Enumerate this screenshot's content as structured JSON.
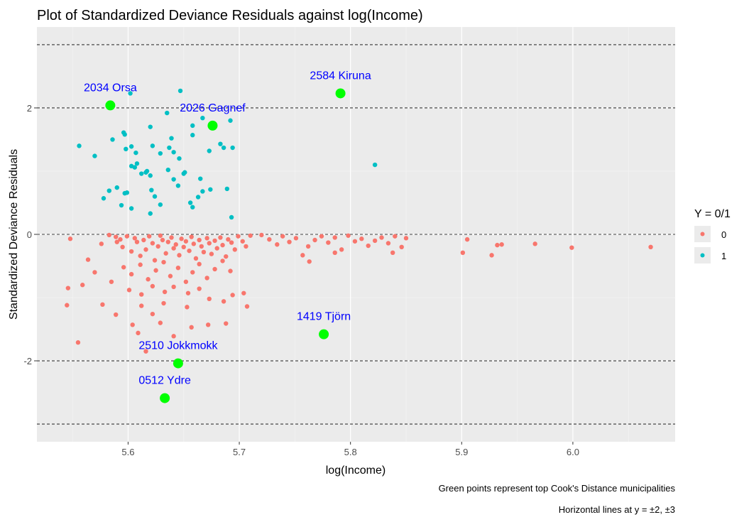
{
  "chart_data": {
    "type": "scatter",
    "title": "Plot of Standardized Deviance Residuals against log(Income)",
    "xlabel": "log(Income)",
    "ylabel": "Standardized Deviance Residuals",
    "xlim": [
      5.518,
      6.092
    ],
    "ylim": [
      -3.28,
      3.28
    ],
    "x_ticks": [
      5.6,
      5.7,
      5.8,
      5.9,
      6.0
    ],
    "x_tick_labels": [
      "5.6",
      "5.7",
      "5.8",
      "5.9",
      "6.0"
    ],
    "y_ticks": [
      -2,
      0,
      2
    ],
    "y_tick_labels": [
      "-2",
      "0",
      "2"
    ],
    "grid": true,
    "reference_lines": [
      -3,
      -2,
      0,
      2,
      3
    ],
    "legend": {
      "title": "Y = 0/1",
      "position": "right",
      "entries": [
        {
          "label": "0",
          "color": "#F8766D"
        },
        {
          "label": "1",
          "color": "#00BFC4"
        }
      ]
    },
    "captions": [
      "Green points represent top Cook's Distance municipalities",
      "Horizontal lines at y = ±2, ±3"
    ],
    "highlight_color": "#00FF00",
    "label_color": "#0000FF",
    "highlighted": [
      {
        "label": "2034 Orsa",
        "x": 5.584,
        "y": 2.04
      },
      {
        "label": "2584 Kiruna",
        "x": 5.791,
        "y": 2.23
      },
      {
        "label": "2026 Gagnef",
        "x": 5.676,
        "y": 1.72
      },
      {
        "label": "1419 Tjörn",
        "x": 5.776,
        "y": -1.58
      },
      {
        "label": "2510 Jokkmokk",
        "x": 5.645,
        "y": -2.04
      },
      {
        "label": "0512 Ydre",
        "x": 5.633,
        "y": -2.59
      }
    ],
    "series": [
      {
        "name": "1",
        "color": "#00BFC4",
        "points": [
          [
            5.602,
            2.23
          ],
          [
            5.647,
            2.27
          ],
          [
            5.635,
            1.92
          ],
          [
            5.667,
            1.84
          ],
          [
            5.658,
            1.72
          ],
          [
            5.676,
            1.73
          ],
          [
            5.692,
            1.8
          ],
          [
            5.62,
            1.7
          ],
          [
            5.596,
            1.61
          ],
          [
            5.597,
            1.58
          ],
          [
            5.586,
            1.5
          ],
          [
            5.622,
            1.4
          ],
          [
            5.639,
            1.52
          ],
          [
            5.658,
            1.57
          ],
          [
            5.683,
            1.43
          ],
          [
            5.556,
            1.4
          ],
          [
            5.598,
            1.35
          ],
          [
            5.603,
            1.39
          ],
          [
            5.607,
            1.29
          ],
          [
            5.629,
            1.28
          ],
          [
            5.637,
            1.37
          ],
          [
            5.641,
            1.3
          ],
          [
            5.673,
            1.32
          ],
          [
            5.686,
            1.37
          ],
          [
            5.694,
            1.37
          ],
          [
            5.57,
            1.24
          ],
          [
            5.603,
            1.08
          ],
          [
            5.606,
            1.06
          ],
          [
            5.608,
            1.12
          ],
          [
            5.612,
            0.96
          ],
          [
            5.616,
            0.98
          ],
          [
            5.62,
            0.93
          ],
          [
            5.636,
            1.02
          ],
          [
            5.646,
            1.2
          ],
          [
            5.65,
            0.96
          ],
          [
            5.665,
            0.88
          ],
          [
            5.617,
            1.0
          ],
          [
            5.641,
            0.87
          ],
          [
            5.645,
            0.77
          ],
          [
            5.651,
            0.98
          ],
          [
            5.822,
            1.1
          ],
          [
            5.583,
            0.69
          ],
          [
            5.59,
            0.74
          ],
          [
            5.597,
            0.65
          ],
          [
            5.599,
            0.66
          ],
          [
            5.621,
            0.7
          ],
          [
            5.624,
            0.6
          ],
          [
            5.629,
            0.47
          ],
          [
            5.656,
            0.5
          ],
          [
            5.663,
            0.59
          ],
          [
            5.667,
            0.68
          ],
          [
            5.674,
            0.71
          ],
          [
            5.689,
            0.72
          ],
          [
            5.578,
            0.57
          ],
          [
            5.594,
            0.46
          ],
          [
            5.603,
            0.41
          ],
          [
            5.62,
            0.33
          ],
          [
            5.658,
            0.43
          ],
          [
            5.693,
            0.27
          ]
        ]
      },
      {
        "name": "0",
        "color": "#F8766D",
        "points": [
          [
            5.548,
            -0.07
          ],
          [
            5.564,
            -0.4
          ],
          [
            5.576,
            -0.15
          ],
          [
            5.583,
            -0.01
          ],
          [
            5.589,
            -0.04
          ],
          [
            5.59,
            -0.12
          ],
          [
            5.593,
            -0.08
          ],
          [
            5.595,
            -0.2
          ],
          [
            5.599,
            -0.03
          ],
          [
            5.603,
            -0.27
          ],
          [
            5.606,
            -0.06
          ],
          [
            5.608,
            -0.12
          ],
          [
            5.611,
            -0.34
          ],
          [
            5.614,
            -0.09
          ],
          [
            5.616,
            -0.24
          ],
          [
            5.619,
            -0.03
          ],
          [
            5.622,
            -0.14
          ],
          [
            5.624,
            -0.41
          ],
          [
            5.627,
            -0.19
          ],
          [
            5.629,
            -0.02
          ],
          [
            5.631,
            -0.09
          ],
          [
            5.634,
            -0.3
          ],
          [
            5.636,
            -0.12
          ],
          [
            5.639,
            -0.05
          ],
          [
            5.641,
            -0.22
          ],
          [
            5.643,
            -0.16
          ],
          [
            5.646,
            -0.33
          ],
          [
            5.648,
            -0.07
          ],
          [
            5.65,
            -0.2
          ],
          [
            5.652,
            -0.11
          ],
          [
            5.655,
            -0.26
          ],
          [
            5.657,
            -0.04
          ],
          [
            5.659,
            -0.15
          ],
          [
            5.661,
            -0.38
          ],
          [
            5.664,
            -0.09
          ],
          [
            5.666,
            -0.19
          ],
          [
            5.668,
            -0.28
          ],
          [
            5.671,
            -0.06
          ],
          [
            5.673,
            -0.14
          ],
          [
            5.675,
            -0.31
          ],
          [
            5.678,
            -0.1
          ],
          [
            5.68,
            -0.22
          ],
          [
            5.683,
            -0.05
          ],
          [
            5.685,
            -0.17
          ],
          [
            5.688,
            -0.35
          ],
          [
            5.69,
            -0.08
          ],
          [
            5.693,
            -0.13
          ],
          [
            5.696,
            -0.24
          ],
          [
            5.699,
            -0.03
          ],
          [
            5.703,
            -0.11
          ],
          [
            5.706,
            -0.19
          ],
          [
            5.71,
            -0.02
          ],
          [
            5.596,
            -0.52
          ],
          [
            5.603,
            -0.63
          ],
          [
            5.611,
            -0.48
          ],
          [
            5.618,
            -0.71
          ],
          [
            5.625,
            -0.57
          ],
          [
            5.632,
            -0.44
          ],
          [
            5.638,
            -0.66
          ],
          [
            5.645,
            -0.53
          ],
          [
            5.652,
            -0.75
          ],
          [
            5.658,
            -0.6
          ],
          [
            5.664,
            -0.47
          ],
          [
            5.671,
            -0.69
          ],
          [
            5.678,
            -0.55
          ],
          [
            5.685,
            -0.42
          ],
          [
            5.692,
            -0.58
          ],
          [
            5.601,
            -0.88
          ],
          [
            5.612,
            -0.95
          ],
          [
            5.622,
            -0.82
          ],
          [
            5.633,
            -0.91
          ],
          [
            5.641,
            -0.83
          ],
          [
            5.654,
            -0.93
          ],
          [
            5.664,
            -0.86
          ],
          [
            5.694,
            -0.96
          ],
          [
            5.704,
            -0.93
          ],
          [
            5.546,
            -0.85
          ],
          [
            5.559,
            -0.8
          ],
          [
            5.57,
            -0.6
          ],
          [
            5.585,
            -0.75
          ],
          [
            5.545,
            -1.12
          ],
          [
            5.577,
            -1.11
          ],
          [
            5.589,
            -1.27
          ],
          [
            5.612,
            -1.13
          ],
          [
            5.622,
            -1.26
          ],
          [
            5.632,
            -1.09
          ],
          [
            5.653,
            -1.15
          ],
          [
            5.673,
            -1.02
          ],
          [
            5.686,
            -1.06
          ],
          [
            5.707,
            -1.14
          ],
          [
            5.604,
            -1.43
          ],
          [
            5.609,
            -1.56
          ],
          [
            5.629,
            -1.4
          ],
          [
            5.641,
            -1.61
          ],
          [
            5.657,
            -1.47
          ],
          [
            5.672,
            -1.43
          ],
          [
            5.688,
            -1.41
          ],
          [
            5.555,
            -1.71
          ],
          [
            5.616,
            -1.85
          ],
          [
            5.72,
            -0.01
          ],
          [
            5.727,
            -0.08
          ],
          [
            5.734,
            -0.16
          ],
          [
            5.739,
            -0.03
          ],
          [
            5.745,
            -0.12
          ],
          [
            5.751,
            -0.06
          ],
          [
            5.757,
            -0.33
          ],
          [
            5.762,
            -0.19
          ],
          [
            5.768,
            -0.09
          ],
          [
            5.774,
            -0.03
          ],
          [
            5.78,
            -0.13
          ],
          [
            5.786,
            -0.05
          ],
          [
            5.792,
            -0.24
          ],
          [
            5.798,
            -0.02
          ],
          [
            5.804,
            -0.11
          ],
          [
            5.81,
            -0.07
          ],
          [
            5.816,
            -0.18
          ],
          [
            5.822,
            -0.1
          ],
          [
            5.828,
            -0.05
          ],
          [
            5.834,
            -0.14
          ],
          [
            5.84,
            -0.03
          ],
          [
            5.846,
            -0.2
          ],
          [
            5.85,
            -0.06
          ],
          [
            5.763,
            -0.43
          ],
          [
            5.786,
            -0.29
          ],
          [
            5.838,
            -0.29
          ],
          [
            5.901,
            -0.29
          ],
          [
            5.905,
            -0.08
          ],
          [
            5.927,
            -0.33
          ],
          [
            5.932,
            -0.17
          ],
          [
            5.936,
            -0.16
          ],
          [
            5.966,
            -0.15
          ],
          [
            5.999,
            -0.21
          ],
          [
            6.07,
            -0.2
          ]
        ]
      }
    ]
  }
}
